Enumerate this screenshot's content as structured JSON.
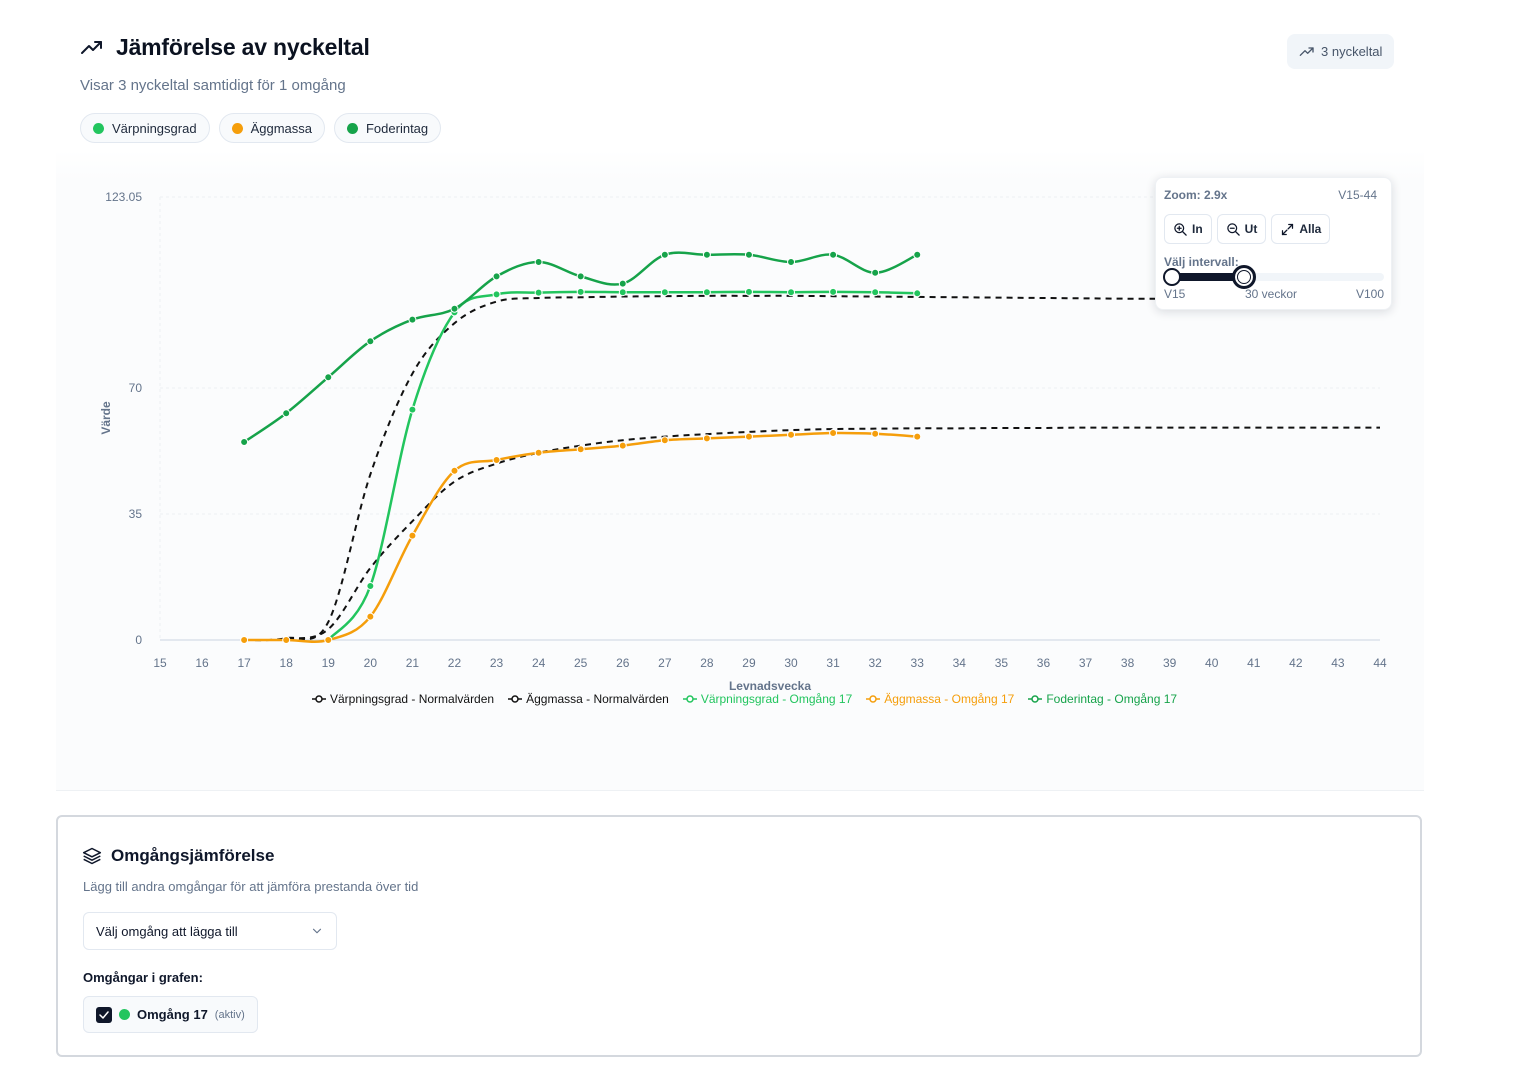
{
  "header": {
    "title": "Jämförelse av nyckeltal",
    "subtitle": "Visar 3 nyckeltal samtidigt för 1 omgång",
    "badge": "3 nyckeltal"
  },
  "chips": [
    {
      "label": "Värpningsgrad",
      "color": "#22c55e"
    },
    {
      "label": "Äggmassa",
      "color": "#f59e0b"
    },
    {
      "label": "Foderintag",
      "color": "#16a34a"
    }
  ],
  "zoom": {
    "zoom_label": "Zoom: 2.9x",
    "range_label": "V15-44",
    "in_label": "In",
    "out_label": "Ut",
    "all_label": "Alla",
    "interval_label": "Välj intervall:",
    "slider_min": "V15",
    "slider_mid": "30 veckor",
    "slider_max": "V100",
    "slider_start": 15,
    "slider_end": 44,
    "slider_domain": [
      15,
      100
    ]
  },
  "chart_data": {
    "type": "line",
    "xlabel": "Levnadsvecka",
    "ylabel": "Värde",
    "xlim": [
      15,
      44
    ],
    "ylim": [
      0,
      123.05
    ],
    "x_ticks": [
      15,
      16,
      17,
      18,
      19,
      20,
      21,
      22,
      23,
      24,
      25,
      26,
      27,
      28,
      29,
      30,
      31,
      32,
      33,
      34,
      35,
      36,
      37,
      38,
      39,
      40,
      41,
      42,
      43,
      44
    ],
    "y_ticks": [
      0,
      35,
      70,
      123.05
    ],
    "grid": true,
    "series": [
      {
        "name": "Värpningsgrad - Normalvärden",
        "color": "#111111",
        "dashed": true,
        "x": [
          17,
          18,
          19,
          20,
          21,
          22,
          23,
          24,
          25,
          26,
          27,
          28,
          29,
          30,
          31,
          32,
          33,
          34,
          35,
          36,
          37,
          38,
          39,
          40,
          41,
          42,
          43,
          44
        ],
        "y": [
          0,
          0.5,
          5,
          46,
          74,
          88,
          94,
          95,
          95.2,
          95.4,
          95.5,
          95.6,
          95.6,
          95.6,
          95.5,
          95.4,
          95.3,
          95.2,
          95.1,
          95,
          94.9,
          94.8,
          94.8,
          94.8,
          94.8,
          94.8,
          94.8,
          94.8
        ]
      },
      {
        "name": "Äggmassa - Normalvärden",
        "color": "#111111",
        "dashed": true,
        "x": [
          17,
          18,
          19,
          20,
          21,
          22,
          23,
          24,
          25,
          26,
          27,
          28,
          29,
          30,
          31,
          32,
          33,
          34,
          35,
          36,
          37,
          38,
          39,
          40,
          41,
          42,
          43,
          44
        ],
        "y": [
          0,
          0.3,
          3,
          20,
          33,
          44,
          49,
          52,
          54,
          55.5,
          56.5,
          57.2,
          57.8,
          58.3,
          58.6,
          58.7,
          58.8,
          58.8,
          58.9,
          58.9,
          59,
          59,
          59,
          59,
          59,
          59,
          59,
          59
        ]
      },
      {
        "name": "Värpningsgrad - Omgång 17",
        "color": "#22c55e",
        "dashed": false,
        "x": [
          19,
          20,
          21,
          22,
          23,
          24,
          25,
          26,
          27,
          28,
          29,
          30,
          31,
          32,
          33
        ],
        "y": [
          0,
          15,
          64,
          91,
          96,
          96.5,
          96.7,
          96.6,
          96.6,
          96.6,
          96.7,
          96.6,
          96.7,
          96.6,
          96.3
        ]
      },
      {
        "name": "Äggmassa - Omgång 17",
        "color": "#f59e0b",
        "dashed": false,
        "x": [
          17,
          18,
          19,
          20,
          21,
          22,
          23,
          24,
          25,
          26,
          27,
          28,
          29,
          30,
          31,
          32,
          33
        ],
        "y": [
          0,
          0,
          0,
          6.5,
          29,
          47,
          50,
          52,
          53,
          54,
          55.5,
          56,
          56.5,
          57,
          57.5,
          57.3,
          56.5
        ]
      },
      {
        "name": "Foderintag - Omgång 17",
        "color": "#16a34a",
        "dashed": false,
        "x": [
          17,
          18,
          19,
          20,
          21,
          22,
          23,
          24,
          25,
          26,
          27,
          28,
          29,
          30,
          31,
          32,
          33
        ],
        "y": [
          55,
          63,
          73,
          83,
          89,
          92,
          101,
          105,
          101,
          99,
          107,
          107,
          107,
          105,
          107,
          102,
          107
        ]
      }
    ]
  },
  "compare": {
    "title": "Omgångsjämförelse",
    "description": "Lägg till andra omgångar för att jämföra prestanda över tid",
    "select_label": "Välj omgång att lägga till",
    "runs_label": "Omgångar i grafen:",
    "run_name": "Omgång 17",
    "run_tag": "(aktiv)",
    "run_color": "#22c55e"
  }
}
